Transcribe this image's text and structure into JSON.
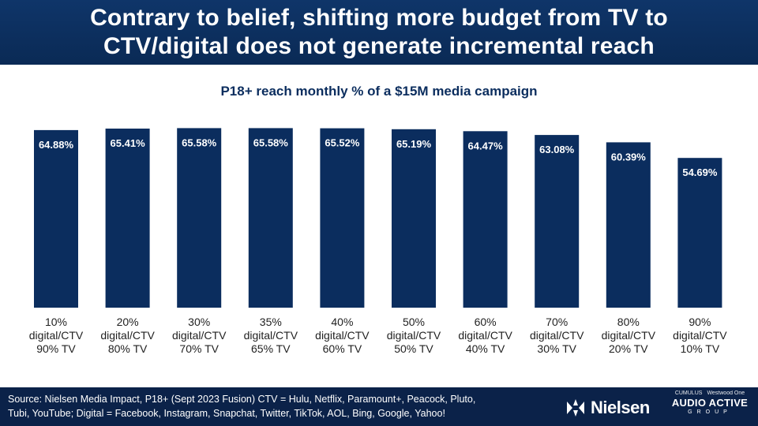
{
  "title": {
    "line1": "Contrary to belief, shifting more budget from TV to",
    "line2": "CTV/digital does not generate incremental reach"
  },
  "chart_data": {
    "type": "bar",
    "title": "P18+ reach monthly % of a $15M media campaign",
    "categories": [
      [
        "10%",
        "digital/CTV",
        "90% TV"
      ],
      [
        "20%",
        "digital/CTV",
        "80% TV"
      ],
      [
        "30%",
        "digital/CTV",
        "70% TV"
      ],
      [
        "35%",
        "digital/CTV",
        "65% TV"
      ],
      [
        "40%",
        "digital/CTV",
        "60% TV"
      ],
      [
        "50%",
        "digital/CTV",
        "50% TV"
      ],
      [
        "60%",
        "digital/CTV",
        "40% TV"
      ],
      [
        "70%",
        "digital/CTV",
        "30% TV"
      ],
      [
        "80%",
        "digital/CTV",
        "20% TV"
      ],
      [
        "90%",
        "digital/CTV",
        "10% TV"
      ]
    ],
    "values": [
      64.88,
      65.41,
      65.58,
      65.58,
      65.52,
      65.19,
      64.47,
      63.08,
      60.39,
      54.69
    ],
    "value_suffix": "%",
    "ylim": [
      0,
      70
    ],
    "xlabel": "",
    "ylabel": "",
    "grid": false,
    "bar_color": "#0b2d5e"
  },
  "footer": {
    "source_line1": "Source: Nielsen Media Impact, P18+ (Sept 2023 Fusion) CTV = Hulu, Netflix, Paramount+, Peacock, Pluto,",
    "source_line2": "Tubi, YouTube; Digital = Facebook, Instagram, Snapchat, Twitter, TikTok, AOL, Bing, Google, Yahoo!",
    "nielsen_logo_text": "Nielsen",
    "aag_brand_1": "CUMULUS",
    "aag_brand_2": "Westwood One",
    "aag_main": "AUDIO ACTIVE",
    "aag_group": "GROUP"
  }
}
